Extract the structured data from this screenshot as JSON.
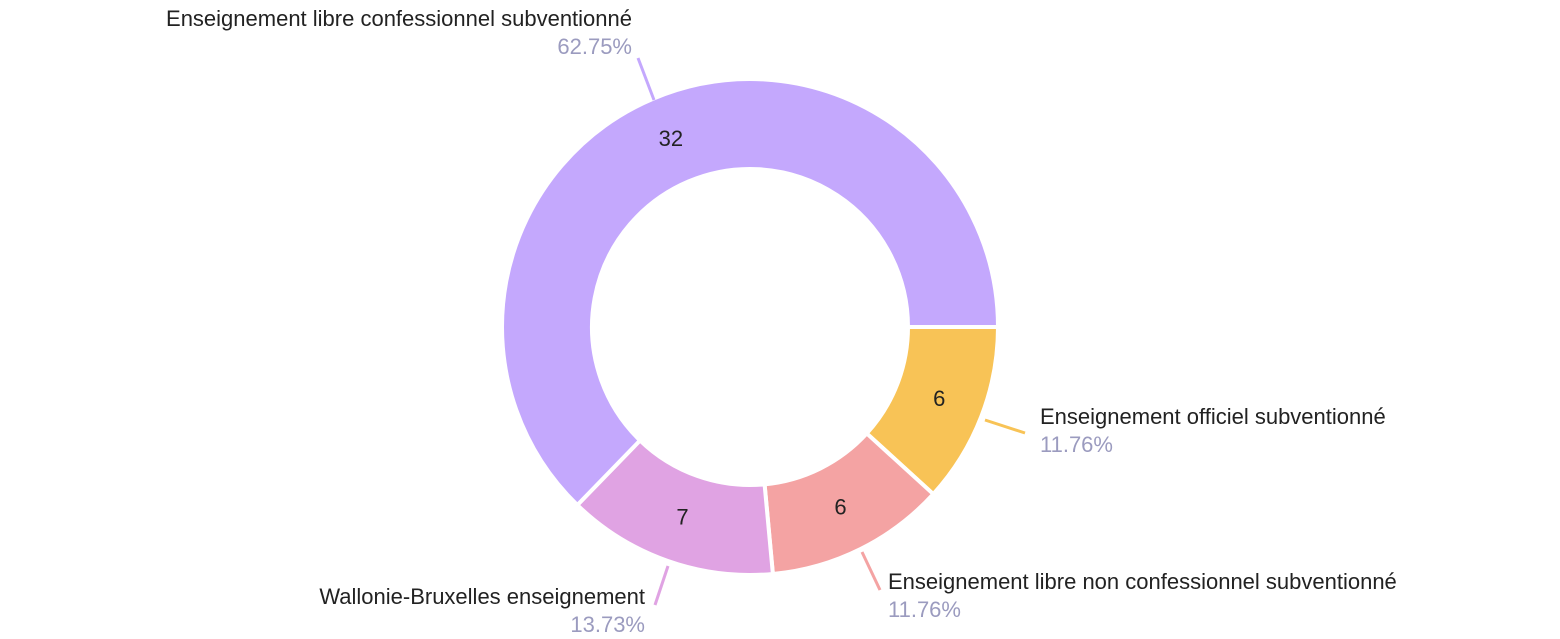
{
  "chart_data": {
    "type": "donut",
    "categories": [
      "Enseignement officiel subventionné",
      "Enseignement libre non confessionnel subventionné",
      "Wallonie-Bruxelles enseignement",
      "Enseignement libre confessionnel subventionné"
    ],
    "values": [
      6,
      6,
      7,
      32
    ],
    "percent_labels": [
      "11.76%",
      "11.76%",
      "13.73%",
      "62.75%"
    ],
    "colors": [
      "#f8c356",
      "#f4a3a3",
      "#e0a3e3",
      "#c4a8fd"
    ]
  }
}
